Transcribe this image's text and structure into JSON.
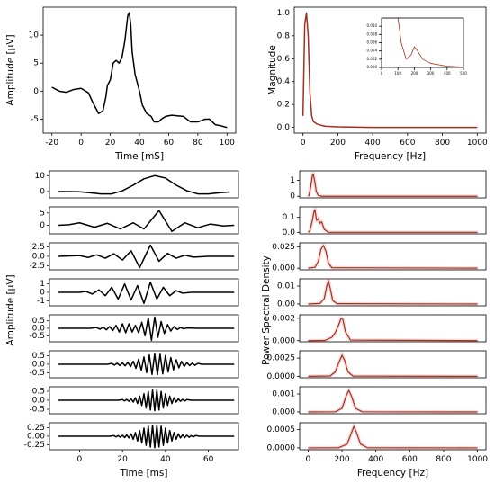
{
  "chart_data": [
    {
      "type": "line",
      "ylabel": "Amplitude [µV]",
      "xlabel": "Time [mS]",
      "color": "#000000",
      "x": [
        -20,
        -15,
        -10,
        -5,
        0,
        5,
        8,
        12,
        15,
        17,
        18,
        20,
        22,
        24,
        26,
        28,
        30,
        32,
        33,
        34,
        35,
        37,
        40,
        42,
        45,
        48,
        50,
        53,
        55,
        58,
        62,
        70,
        75,
        80,
        85,
        88,
        92,
        96,
        100
      ],
      "values": [
        0.7,
        0,
        -0.2,
        0.3,
        0.5,
        -0.3,
        -2,
        -4,
        -3.5,
        -1,
        1,
        2,
        5,
        5.5,
        5,
        6,
        9,
        13.5,
        14,
        12,
        7,
        3,
        0,
        -2.5,
        -4,
        -4.5,
        -5.5,
        -5.5,
        -5,
        -4.5,
        -4.3,
        -4.5,
        -5.5,
        -5.5,
        -5,
        -5,
        -6,
        -6.2,
        -6.5
      ],
      "xlim": [
        -26,
        106
      ],
      "ylim": [
        -7.5,
        15
      ],
      "xticks": [
        -20,
        0,
        20,
        40,
        60,
        80,
        100
      ],
      "yticks": [
        -5,
        0,
        5,
        10
      ]
    },
    {
      "type": "line",
      "ylabel": "Magnitude",
      "xlabel": "Frequency [Hz]",
      "color": "#a0301e",
      "x": [
        0,
        10,
        20,
        30,
        40,
        50,
        60,
        70,
        80,
        100,
        130,
        200,
        400,
        600,
        800,
        1000
      ],
      "values": [
        0.1,
        0.9,
        1.0,
        0.8,
        0.3,
        0.1,
        0.05,
        0.04,
        0.03,
        0.02,
        0.01,
        0.005,
        0,
        0,
        0,
        0
      ],
      "xlim": [
        -50,
        1050
      ],
      "ylim": [
        -0.05,
        1.05
      ],
      "xticks": [
        0,
        200,
        400,
        600,
        800,
        1000
      ],
      "yticks": [
        {
          "value": 0,
          "label": "0.0"
        },
        0.2,
        0.4,
        0.6,
        0.8,
        {
          "value": 1,
          "label": "1.0"
        }
      ]
    },
    {
      "type": "line",
      "color": "#a0301e",
      "x": [
        0,
        100,
        120,
        150,
        180,
        200,
        220,
        250,
        300,
        400,
        500
      ],
      "values": [
        0.012,
        0.012,
        0.006,
        0.002,
        0.003,
        0.005,
        0.004,
        0.002,
        0.001,
        0.0003,
        0.0001
      ],
      "xlim": [
        0,
        500
      ],
      "ylim": [
        0,
        0.012
      ],
      "xticks": [
        0,
        100,
        200,
        300,
        400,
        500
      ],
      "yticks": [
        {
          "value": 0,
          "label": "0.000"
        },
        0.002,
        0.004,
        0.006,
        0.008,
        {
          "value": 0.01,
          "label": "0.010"
        }
      ]
    },
    {
      "type": "line",
      "ylabel": "Amplitude [µV]",
      "color": "#000000",
      "x": [
        -10,
        -5,
        0,
        5,
        10,
        15,
        20,
        25,
        30,
        35,
        40,
        45,
        50,
        55,
        60,
        65,
        70
      ],
      "values": [
        0,
        0,
        -0.2,
        -0.8,
        -1.5,
        -1.5,
        0.5,
        4,
        8,
        10,
        8.5,
        4,
        0.5,
        -1.5,
        -1.5,
        -0.8,
        -0.3
      ],
      "xlim": [
        -14,
        74
      ],
      "ylim": [
        -4,
        13
      ],
      "yticks": [
        0,
        10
      ]
    },
    {
      "type": "line",
      "color": "#000000",
      "x": [
        -10,
        -5,
        0,
        7,
        13,
        19,
        25,
        30,
        37,
        43,
        49,
        55,
        61,
        67,
        72
      ],
      "values": [
        0,
        0.2,
        1,
        -0.8,
        0.8,
        -1.5,
        1,
        -1.5,
        6,
        -2.5,
        1,
        -1,
        0.5,
        -0.3,
        0
      ],
      "xlim": [
        -14,
        74
      ],
      "ylim": [
        -3.5,
        7.5
      ],
      "yticks": [
        0,
        5
      ]
    },
    {
      "type": "line",
      "color": "#000000",
      "x": [
        -10,
        0,
        4,
        8,
        12,
        16,
        20,
        24,
        28,
        33,
        37,
        41,
        45,
        49,
        53,
        60,
        72
      ],
      "values": [
        0,
        0.2,
        -0.3,
        0.4,
        -0.5,
        0.7,
        -1,
        1.5,
        -3,
        3,
        -1.3,
        0.8,
        -0.5,
        0.3,
        -0.2,
        0,
        0
      ],
      "xlim": [
        -14,
        74
      ],
      "ylim": [
        -3.6,
        3.6
      ],
      "yticks": [
        -2.5,
        {
          "value": 0,
          "label": "0.0"
        },
        2.5
      ]
    },
    {
      "type": "line",
      "color": "#000000",
      "x": [
        -10,
        0,
        3,
        6,
        9,
        12,
        15,
        18,
        21,
        24,
        27,
        30,
        33,
        36,
        39,
        42,
        45,
        48,
        52,
        72
      ],
      "values": [
        0,
        0,
        0.1,
        -0.2,
        0.3,
        -0.4,
        0.6,
        -0.8,
        1,
        -0.9,
        0.8,
        -1.3,
        1.2,
        -0.8,
        0.6,
        -0.4,
        0.2,
        -0.1,
        0,
        0
      ],
      "xlim": [
        -14,
        74
      ],
      "ylim": [
        -1.6,
        1.6
      ],
      "yticks": [
        -1,
        0,
        1
      ]
    },
    {
      "type": "line",
      "color": "#000000",
      "x": [
        -10,
        5,
        8,
        9.5,
        11,
        12.5,
        14,
        15.5,
        17,
        18.5,
        20,
        21.5,
        23,
        24.5,
        26,
        27.5,
        29,
        30.5,
        32,
        33.5,
        35,
        36.5,
        38,
        39.5,
        41,
        42.5,
        44,
        45.5,
        47,
        48.5,
        50,
        55,
        72
      ],
      "values": [
        0,
        0,
        0.05,
        -0.06,
        0.08,
        -0.1,
        0.12,
        -0.15,
        0.2,
        -0.25,
        0.3,
        -0.3,
        0.3,
        -0.25,
        0.2,
        -0.3,
        0.4,
        -0.5,
        0.7,
        -0.8,
        0.75,
        -0.6,
        0.45,
        -0.35,
        0.25,
        -0.18,
        0.12,
        -0.08,
        0.05,
        -0.03,
        0.02,
        0,
        0
      ],
      "xlim": [
        -14,
        74
      ],
      "ylim": [
        -0.9,
        0.9
      ],
      "yticks": [
        -0.5,
        {
          "value": 0,
          "label": "0.0"
        },
        0.5
      ]
    },
    {
      "type": "line",
      "color": "#000000",
      "x": [
        -10,
        13,
        15,
        16.25,
        17.5,
        18.75,
        20,
        21.25,
        22.5,
        23.75,
        25,
        26.25,
        27.5,
        28.75,
        30,
        31.25,
        32.5,
        33.75,
        35,
        36.25,
        37.5,
        38.75,
        40,
        41.25,
        42.5,
        43.75,
        45,
        46.25,
        47.5,
        48.75,
        50,
        51.25,
        52.5,
        53.75,
        55,
        57,
        72
      ],
      "values": [
        0,
        0,
        0.05,
        -0.05,
        0.06,
        -0.07,
        0.08,
        -0.09,
        0.11,
        -0.14,
        0.18,
        -0.24,
        0.3,
        -0.36,
        0.43,
        -0.5,
        0.55,
        -0.6,
        0.62,
        -0.62,
        0.6,
        -0.57,
        0.52,
        -0.46,
        0.4,
        -0.33,
        0.27,
        -0.21,
        0.17,
        -0.13,
        0.1,
        -0.08,
        0.07,
        -0.06,
        0.05,
        0,
        0
      ],
      "xlim": [
        -14,
        74
      ],
      "ylim": [
        -0.8,
        0.8
      ],
      "yticks": [
        -0.5,
        {
          "value": 0,
          "label": "0.0"
        },
        0.5
      ]
    },
    {
      "type": "line",
      "color": "#000000",
      "x": [
        -10,
        18,
        20,
        21,
        22,
        23,
        24,
        25,
        26,
        27,
        28,
        29,
        30,
        31,
        32,
        33,
        34,
        35,
        36,
        37,
        38,
        39,
        40,
        41,
        42,
        43,
        44,
        45,
        46,
        47,
        48,
        49,
        50,
        52,
        72
      ],
      "values": [
        0,
        0,
        0.04,
        -0.04,
        0.05,
        -0.06,
        0.08,
        -0.1,
        0.14,
        -0.18,
        0.23,
        -0.29,
        0.36,
        -0.43,
        0.49,
        -0.54,
        0.57,
        -0.58,
        0.57,
        -0.54,
        0.49,
        -0.43,
        0.36,
        -0.29,
        0.23,
        -0.18,
        0.14,
        -0.1,
        0.08,
        -0.06,
        0.05,
        -0.04,
        0.04,
        0,
        0
      ],
      "xlim": [
        -14,
        74
      ],
      "ylim": [
        -0.75,
        0.75
      ],
      "yticks": [
        -0.5,
        {
          "value": 0,
          "label": "0.0"
        },
        0.5
      ]
    },
    {
      "type": "line",
      "xlabel": "Time [ms]",
      "color": "#000000",
      "x": [
        -10,
        14,
        16,
        17,
        18,
        19,
        20,
        21,
        22,
        23,
        24,
        25,
        26,
        27,
        28,
        29,
        30,
        31,
        32,
        33,
        34,
        35,
        36,
        37,
        38,
        39,
        40,
        41,
        42,
        43,
        44,
        45,
        46,
        47,
        48,
        49,
        50,
        51,
        52,
        53,
        54,
        56,
        72
      ],
      "values": [
        0,
        0,
        0.02,
        -0.02,
        0.02,
        -0.03,
        0.03,
        -0.04,
        0.04,
        -0.05,
        0.07,
        -0.09,
        0.11,
        -0.14,
        0.17,
        -0.2,
        0.24,
        -0.27,
        0.3,
        -0.32,
        0.33,
        -0.34,
        0.33,
        -0.32,
        0.3,
        -0.27,
        0.24,
        -0.2,
        0.17,
        -0.14,
        0.11,
        -0.09,
        0.07,
        -0.05,
        0.04,
        -0.04,
        0.03,
        -0.03,
        0.02,
        -0.02,
        0.02,
        0,
        0
      ],
      "xlim": [
        -14,
        74
      ],
      "ylim": [
        -0.4,
        0.4
      ],
      "xticks": [
        0,
        20,
        40,
        60
      ],
      "yticks": [
        -0.25,
        {
          "value": 0,
          "label": "0.00"
        },
        0.25
      ]
    },
    {
      "type": "line",
      "ylabel": "Power Spectral Density",
      "color": "#a0301e",
      "x": [
        0,
        5,
        15,
        25,
        30,
        38,
        48,
        60,
        80,
        1000
      ],
      "values": [
        0,
        0.05,
        0.6,
        1.3,
        1.4,
        1.0,
        0.3,
        0.05,
        0,
        0
      ],
      "xlim": [
        -50,
        1050
      ],
      "ylim": [
        -0.1,
        1.6
      ],
      "yticks": [
        0,
        1
      ]
    },
    {
      "type": "line",
      "color": "#a0301e",
      "x": [
        0,
        10,
        25,
        35,
        40,
        50,
        60,
        70,
        80,
        95,
        120,
        1000
      ],
      "values": [
        0,
        0.01,
        0.08,
        0.14,
        0.15,
        0.08,
        0.09,
        0.06,
        0.07,
        0.02,
        0,
        0
      ],
      "xlim": [
        -50,
        1050
      ],
      "ylim": [
        -0.01,
        0.17
      ],
      "yticks": [
        {
          "value": 0,
          "label": "0.0"
        },
        0.1
      ]
    },
    {
      "type": "line",
      "color": "#a0301e",
      "x": [
        0,
        40,
        60,
        75,
        90,
        105,
        120,
        140,
        1000
      ],
      "values": [
        0,
        0.001,
        0.008,
        0.022,
        0.027,
        0.02,
        0.006,
        0.0005,
        0
      ],
      "xlim": [
        -50,
        1050
      ],
      "ylim": [
        -0.002,
        0.03
      ],
      "yticks": [
        {
          "value": 0,
          "label": "0.000"
        },
        0.025
      ]
    },
    {
      "type": "line",
      "color": "#a0301e",
      "x": [
        0,
        70,
        95,
        110,
        120,
        130,
        145,
        170,
        1000
      ],
      "values": [
        0,
        0.0003,
        0.003,
        0.01,
        0.013,
        0.009,
        0.002,
        0.0002,
        0
      ],
      "xlim": [
        -50,
        1050
      ],
      "ylim": [
        -0.001,
        0.014
      ],
      "yticks": [
        {
          "value": 0,
          "label": "0.00"
        },
        0.01
      ]
    },
    {
      "type": "line",
      "color": "#a0301e",
      "x": [
        0,
        100,
        140,
        160,
        180,
        195,
        205,
        220,
        250,
        1000
      ],
      "values": [
        0,
        2e-05,
        0.0003,
        0.0007,
        0.0014,
        0.002,
        0.0019,
        0.0008,
        5e-05,
        0
      ],
      "xlim": [
        -50,
        1050
      ],
      "ylim": [
        -0.0001,
        0.0023
      ],
      "yticks": [
        {
          "value": 0,
          "label": "0.000"
        },
        0.002
      ]
    },
    {
      "type": "line",
      "color": "#a0301e",
      "x": [
        0,
        130,
        160,
        180,
        200,
        215,
        235,
        265,
        1000
      ],
      "values": [
        0,
        5e-05,
        0.0006,
        0.0018,
        0.0029,
        0.0022,
        0.0006,
        3e-05,
        0
      ],
      "xlim": [
        -50,
        1050
      ],
      "ylim": [
        -0.0002,
        0.0035
      ],
      "yticks": [
        {
          "value": 0,
          "label": "0.0000"
        },
        0.0025
      ]
    },
    {
      "type": "line",
      "color": "#a0301e",
      "x": [
        0,
        160,
        200,
        225,
        240,
        255,
        280,
        320,
        1000
      ],
      "values": [
        0,
        1e-05,
        0.0002,
        0.0009,
        0.0012,
        0.0009,
        0.0002,
        1e-05,
        0
      ],
      "xlim": [
        -50,
        1050
      ],
      "ylim": [
        -0.0001,
        0.0014
      ],
      "yticks": [
        {
          "value": 0,
          "label": "0.000"
        },
        0.001
      ]
    },
    {
      "type": "line",
      "xlabel": "Frequency [Hz]",
      "color": "#a0301e",
      "x": [
        0,
        180,
        230,
        255,
        270,
        285,
        310,
        350,
        1000
      ],
      "values": [
        0,
        5e-06,
        0.0001,
        0.0004,
        0.00058,
        0.00042,
        0.0001,
        5e-06,
        0
      ],
      "xlim": [
        -50,
        1050
      ],
      "ylim": [
        -5e-05,
        0.00068
      ],
      "xticks": [
        0,
        200,
        400,
        600,
        800,
        1000
      ],
      "yticks": [
        {
          "value": 0,
          "label": "0.0000"
        },
        0.0005
      ]
    }
  ]
}
